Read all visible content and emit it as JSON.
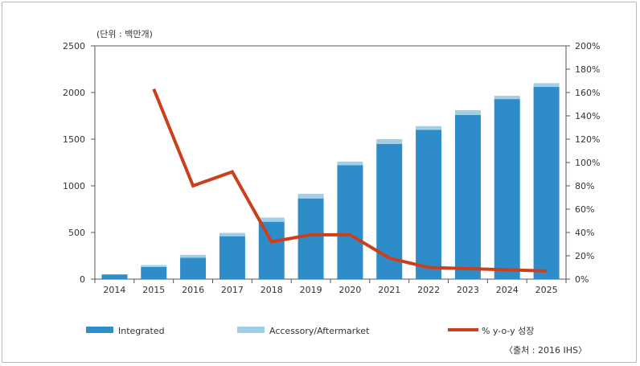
{
  "chart_data": {
    "type": "bar",
    "unit_label": "(단위 : 백만개)",
    "source": "〈출처 : 2016 IHS〉",
    "categories": [
      "2014",
      "2015",
      "2016",
      "2017",
      "2018",
      "2019",
      "2020",
      "2021",
      "2022",
      "2023",
      "2024",
      "2025"
    ],
    "series": [
      {
        "name": "Integrated",
        "kind": "bar",
        "axis": "left",
        "color": "#2e8dc9",
        "values": [
          50,
          130,
          230,
          460,
          615,
          865,
          1220,
          1450,
          1600,
          1760,
          1930,
          2060
        ]
      },
      {
        "name": "Accessory/Aftermarket",
        "kind": "bar",
        "axis": "left",
        "color": "#9fd0ea",
        "values": [
          0,
          20,
          30,
          35,
          45,
          50,
          40,
          50,
          40,
          50,
          35,
          40
        ]
      },
      {
        "name": "% y-o-y 성장",
        "kind": "line",
        "axis": "right",
        "color": "#cc3f1c",
        "values": [
          null,
          163,
          80,
          92,
          32,
          38,
          38,
          18,
          10,
          9,
          8,
          7
        ]
      }
    ],
    "ylim_left": [
      0,
      2500
    ],
    "yticks_left": [
      0,
      500,
      1000,
      1500,
      2000,
      2500
    ],
    "ylim_right": [
      0,
      200
    ],
    "yticks_right": [
      "0%",
      "20%",
      "40%",
      "60%",
      "80%",
      "100%",
      "120%",
      "140%",
      "160%",
      "180%",
      "200%"
    ],
    "grid": false,
    "legend_position": "bottom"
  }
}
